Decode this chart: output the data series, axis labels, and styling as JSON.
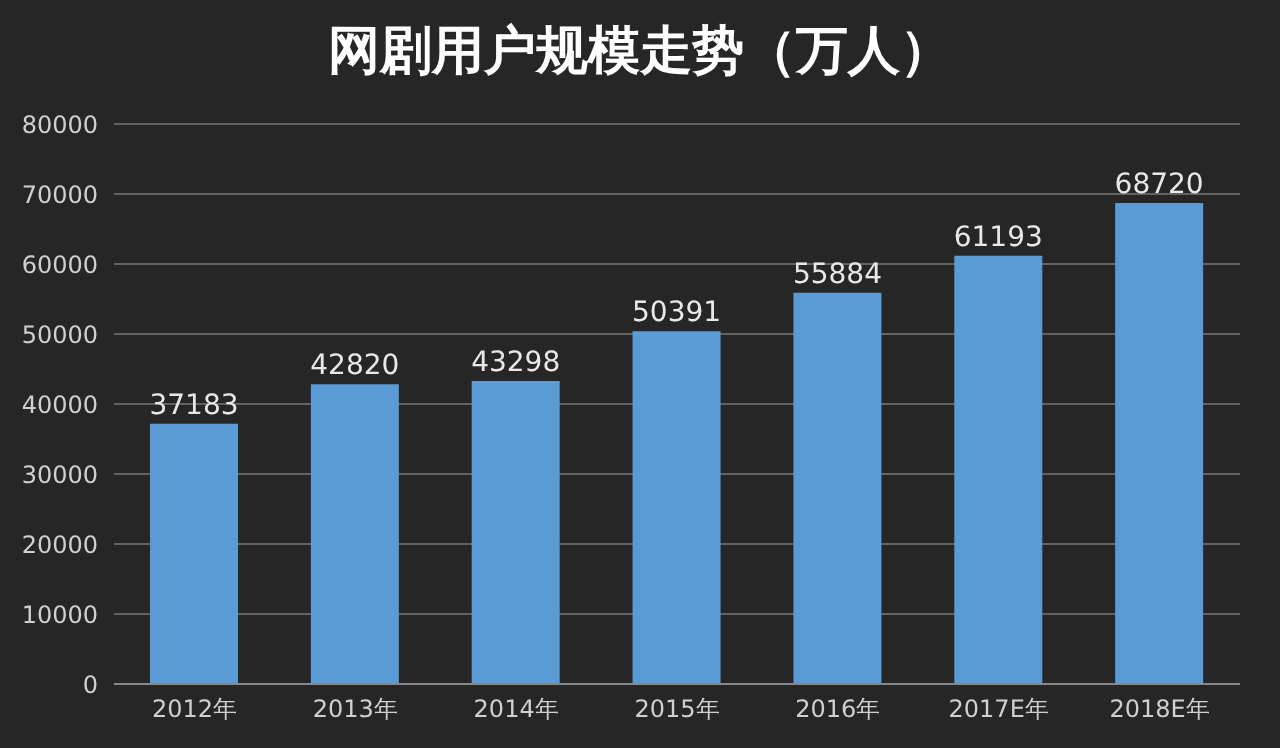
{
  "chart_data": {
    "type": "bar",
    "title": "网剧用户规模走势（万人）",
    "categories": [
      "2012年",
      "2013年",
      "2014年",
      "2015年",
      "2016年",
      "2017E年",
      "2018E年"
    ],
    "values": [
      37183,
      42820,
      43298,
      50391,
      55884,
      61193,
      68720
    ],
    "color": "#5b9bd5",
    "ylim": [
      0,
      80000
    ],
    "yticks": [
      0,
      10000,
      20000,
      30000,
      40000,
      50000,
      60000,
      70000,
      80000
    ],
    "grid": "y",
    "data_labels": true
  }
}
